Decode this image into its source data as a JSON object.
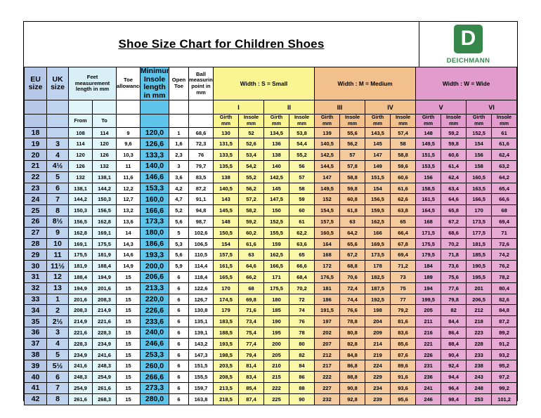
{
  "title": "Shoe Size Chart for Children Shoes",
  "brand": {
    "logo_letter": "D",
    "name": "DEICHMANN",
    "green": "#35884A"
  },
  "colors": {
    "eu_column": "#b5c8e8",
    "uk_column": "#bdd3ee",
    "feet_columns": "#e1f6f8",
    "min_insole_column": "#5ec4e9",
    "width_small": "#fbf492",
    "width_medium": "#f2c08d",
    "width_wide": "#e19ccd"
  },
  "table": {
    "headers": {
      "eu": "EU size",
      "uk": "UK size",
      "feet": "Feet measurement length in mm",
      "toe_allowance": "Toe allowance",
      "min_insole": "Minimum Insole length in mm",
      "open_toe": "Open Toe",
      "ball": "Ball measuring point in mm",
      "width_s": "Width : S = Small",
      "width_m": "Width : M = Medium",
      "width_w": "Width : W = Wide",
      "sub": [
        "I",
        "II",
        "III",
        "IV",
        "V",
        "VI"
      ],
      "from": "From",
      "to": "To",
      "girth": "Girth\nmm",
      "insole": "Insole\nmm"
    },
    "row_columns": [
      "eu_size",
      "uk_size",
      "from_mm",
      "to_mm",
      "toe_allowance",
      "min_insole_mm",
      "open_toe",
      "ball_point_mm",
      "s1_girth",
      "s1_insole",
      "s2_girth",
      "s2_insole",
      "m3_girth",
      "m3_insole",
      "m4_girth",
      "m4_insole",
      "w5_girth",
      "w5_insole",
      "w6_girth",
      "w6_insole"
    ],
    "rows": [
      [
        "18",
        "",
        "108",
        "114",
        "9",
        "120,0",
        "1",
        "68,6",
        "130",
        "52",
        "134,5",
        "53,8",
        "139",
        "55,6",
        "143,5",
        "57,4",
        "148",
        "59,2",
        "152,5",
        "61"
      ],
      [
        "19",
        "3",
        "114",
        "120",
        "9,6",
        "126,6",
        "1,6",
        "72,3",
        "131,5",
        "52,6",
        "136",
        "54,4",
        "140,5",
        "56,2",
        "145",
        "58",
        "149,5",
        "59,8",
        "154",
        "61,6"
      ],
      [
        "20",
        "4",
        "120",
        "126",
        "10,3",
        "133,3",
        "2,3",
        "76",
        "133,5",
        "53,4",
        "138",
        "55,2",
        "142,5",
        "57",
        "147",
        "58,8",
        "151,5",
        "60,6",
        "156",
        "62,4"
      ],
      [
        "21",
        "4½",
        "126",
        "132",
        "11",
        "140,0",
        "3",
        "79,7",
        "135,5",
        "54,2",
        "140",
        "56",
        "144,5",
        "57,8",
        "149",
        "59,6",
        "153,5",
        "61,4",
        "158",
        "63,2"
      ],
      [
        "22",
        "5",
        "132",
        "138,1",
        "11,6",
        "146,6",
        "3,6",
        "83,5",
        "138",
        "55,2",
        "142,5",
        "57",
        "147",
        "58,8",
        "151,5",
        "60,6",
        "156",
        "62,4",
        "160,5",
        "64,2"
      ],
      [
        "23",
        "6",
        "138,1",
        "144,2",
        "12,2",
        "153,3",
        "4,2",
        "87,2",
        "140,5",
        "56,2",
        "145",
        "58",
        "149,5",
        "59,8",
        "154",
        "61,6",
        "158,5",
        "63,4",
        "163,5",
        "65,4"
      ],
      [
        "24",
        "7",
        "144,2",
        "150,3",
        "12,7",
        "160,0",
        "4,7",
        "91,1",
        "143",
        "57,2",
        "147,5",
        "59",
        "152",
        "60,8",
        "156,5",
        "62,6",
        "161,5",
        "64,6",
        "166,5",
        "66,6"
      ],
      [
        "25",
        "8",
        "150,3",
        "156,5",
        "13,2",
        "166,6",
        "5,2",
        "94,8",
        "145,5",
        "58,2",
        "150",
        "60",
        "154,5",
        "61,8",
        "159,5",
        "63,8",
        "164,5",
        "65,8",
        "170",
        "68"
      ],
      [
        "26",
        "8½",
        "156,5",
        "162,8",
        "13,6",
        "173,3",
        "5,6",
        "98,7",
        "148",
        "59,2",
        "152,5",
        "61",
        "157,5",
        "63",
        "162,5",
        "65",
        "168",
        "67,2",
        "173,5",
        "69,4"
      ],
      [
        "27",
        "9",
        "162,8",
        "169,1",
        "14",
        "180,0",
        "5",
        "102,6",
        "150,5",
        "60,2",
        "155,5",
        "62,2",
        "160,5",
        "64,2",
        "166",
        "66,4",
        "171,5",
        "68,6",
        "177,5",
        "71"
      ],
      [
        "28",
        "10",
        "169,1",
        "175,5",
        "14,3",
        "186,6",
        "5,3",
        "106,5",
        "154",
        "61,6",
        "159",
        "63,6",
        "164",
        "65,6",
        "169,5",
        "67,8",
        "175,5",
        "70,2",
        "181,5",
        "72,6"
      ],
      [
        "29",
        "11",
        "175,5",
        "181,9",
        "14,6",
        "193,3",
        "5,6",
        "110,5",
        "157,5",
        "63",
        "162,5",
        "65",
        "168",
        "67,2",
        "173,5",
        "69,4",
        "179,5",
        "71,8",
        "185,5",
        "74,2"
      ],
      [
        "30",
        "11½",
        "181,9",
        "188,4",
        "14,9",
        "200,0",
        "5,9",
        "114,4",
        "161,5",
        "64,6",
        "166,5",
        "66,6",
        "172",
        "68,8",
        "178",
        "71,2",
        "184",
        "73,6",
        "190,5",
        "76,2"
      ],
      [
        "31",
        "12",
        "188,4",
        "194,9",
        "15",
        "206,6",
        "6",
        "118,4",
        "165,5",
        "66,2",
        "171",
        "68,4",
        "176,5",
        "70,6",
        "182,5",
        "73",
        "189",
        "75,6",
        "195,5",
        "78,2"
      ],
      [
        "32",
        "13",
        "194,9",
        "201,6",
        "15",
        "213,3",
        "6",
        "122,6",
        "170",
        "68",
        "175,5",
        "70,2",
        "181",
        "72,4",
        "187,5",
        "75",
        "194",
        "77,6",
        "201",
        "80,4"
      ],
      [
        "33",
        "1",
        "201,6",
        "208,3",
        "15",
        "220,0",
        "6",
        "126,7",
        "174,5",
        "69,8",
        "180",
        "72",
        "186",
        "74,4",
        "192,5",
        "77",
        "199,5",
        "79,8",
        "206,5",
        "82,6"
      ],
      [
        "34",
        "2",
        "208,3",
        "214,9",
        "15",
        "226,6",
        "6",
        "130,8",
        "179",
        "71,6",
        "185",
        "74",
        "191,5",
        "76,6",
        "198",
        "79,2",
        "205",
        "82",
        "212",
        "84,8"
      ],
      [
        "35",
        "2½",
        "214,9",
        "221,6",
        "15",
        "233,6",
        "6",
        "135,1",
        "183,5",
        "73,4",
        "190",
        "76",
        "197",
        "78,8",
        "204",
        "81,6",
        "211",
        "84,4",
        "218",
        "87,2"
      ],
      [
        "36",
        "3",
        "221,6",
        "228,3",
        "15",
        "240,0",
        "6",
        "139,1",
        "188,5",
        "75,4",
        "195",
        "78",
        "202",
        "80,8",
        "209",
        "83,6",
        "216",
        "86,4",
        "223",
        "89,2"
      ],
      [
        "37",
        "4",
        "228,3",
        "234,9",
        "15",
        "246,6",
        "6",
        "143,2",
        "193,5",
        "77,4",
        "200",
        "80",
        "207",
        "82,8",
        "214",
        "85,6",
        "221",
        "88,4",
        "228",
        "91,2"
      ],
      [
        "38",
        "5",
        "234,9",
        "241,6",
        "15",
        "253,3",
        "6",
        "147,3",
        "198,5",
        "79,4",
        "205",
        "82",
        "212",
        "84,8",
        "219",
        "87,6",
        "226",
        "90,4",
        "233",
        "93,2"
      ],
      [
        "39",
        "5½",
        "241,6",
        "248,3",
        "15",
        "260,0",
        "6",
        "151,5",
        "203,5",
        "81,4",
        "210",
        "84",
        "217",
        "86,8",
        "224",
        "89,6",
        "231",
        "92,4",
        "238",
        "95,2"
      ],
      [
        "40",
        "6",
        "248,3",
        "254,9",
        "15",
        "266,6",
        "6",
        "155,5",
        "208,5",
        "83,4",
        "215",
        "86",
        "222",
        "88,8",
        "229",
        "91,6",
        "236",
        "94,4",
        "243",
        "97,2"
      ],
      [
        "41",
        "7",
        "254,9",
        "261,6",
        "15",
        "273,3",
        "6",
        "159,7",
        "213,5",
        "85,4",
        "222",
        "88",
        "227",
        "90,8",
        "234",
        "93,6",
        "241",
        "96,4",
        "248",
        "99,2"
      ],
      [
        "42",
        "8",
        "261,6",
        "268,3",
        "15",
        "280,0",
        "6",
        "163,8",
        "218,5",
        "87,4",
        "225",
        "90",
        "232",
        "92,8",
        "239",
        "95,6",
        "246",
        "98,4",
        "253",
        "101,2"
      ]
    ]
  }
}
